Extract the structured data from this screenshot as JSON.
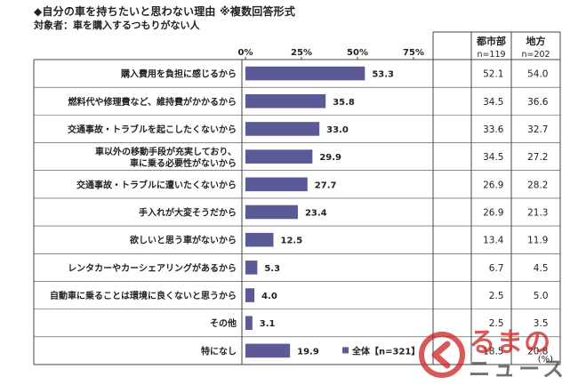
{
  "chart_data": {
    "type": "bar",
    "title": "◆自分の車を持ちたいと思わない理由 ※複数回答形式",
    "subtitle": "対象者：車を購入するつもりがない人",
    "categories": [
      "購入費用を負担に感じるから",
      "燃料代や修理費など、維持費がかかるから",
      "交通事故・トラブルを起こしたくないから",
      "車以外の移動手段が充実しており、車に乗る必要性がないから",
      "交通事故・トラブルに遭いたくないから",
      "手入れが大変そうだから",
      "欲しいと思う車がないから",
      "レンタカーやカーシェアリングがあるから",
      "自動車に乗ることは環境に良くないと思うから",
      "その他",
      "特になし"
    ],
    "category_lines": [
      [
        "購入費用を負担に感じるから"
      ],
      [
        "燃料代や修理費など、維持費がかかるから"
      ],
      [
        "交通事故・トラブルを起こしたくないから"
      ],
      [
        "車以外の移動手段が充実しており、",
        "車に乗る必要性がないから"
      ],
      [
        "交通事故・トラブルに遭いたくないから"
      ],
      [
        "手入れが大変そうだから"
      ],
      [
        "欲しいと思う車がないから"
      ],
      [
        "レンタカーやカーシェアリングがあるから"
      ],
      [
        "自動車に乗ることは環境に良くないと思うから"
      ],
      [
        "その他"
      ],
      [
        "特になし"
      ]
    ],
    "series": [
      {
        "name": "全体【n=321】",
        "values": [
          53.3,
          35.8,
          33.0,
          29.9,
          27.7,
          23.4,
          12.5,
          5.3,
          4.0,
          3.1,
          19.9
        ]
      }
    ],
    "value_labels": [
      "53.3",
      "35.8",
      "33.0",
      "29.9",
      "27.7",
      "23.4",
      "12.5",
      "5.3",
      "4.0",
      "3.1",
      "19.9"
    ],
    "xlim": [
      0,
      75
    ],
    "xticks": [
      "0%",
      "25%",
      "50%",
      "75%"
    ],
    "grid": false,
    "legend": "bottom-right",
    "bar_color": "#5b5a96",
    "table": {
      "columns": [
        {
          "header": "都市部",
          "n": "n=119",
          "values": [
            "52.1",
            "34.5",
            "33.6",
            "34.5",
            "26.9",
            "26.9",
            "13.4",
            "6.7",
            "2.5",
            "2.5",
            "18.5"
          ]
        },
        {
          "header": "地方",
          "n": "n=202",
          "values": [
            "54.0",
            "36.6",
            "32.7",
            "27.2",
            "28.2",
            "21.3",
            "11.9",
            "4.5",
            "5.0",
            "3.5",
            "20.8"
          ]
        }
      ],
      "unit": "(%)"
    }
  },
  "watermark": {
    "line1": "るまの",
    "line2": "ニュース",
    "accent_color": "#cc2222"
  }
}
